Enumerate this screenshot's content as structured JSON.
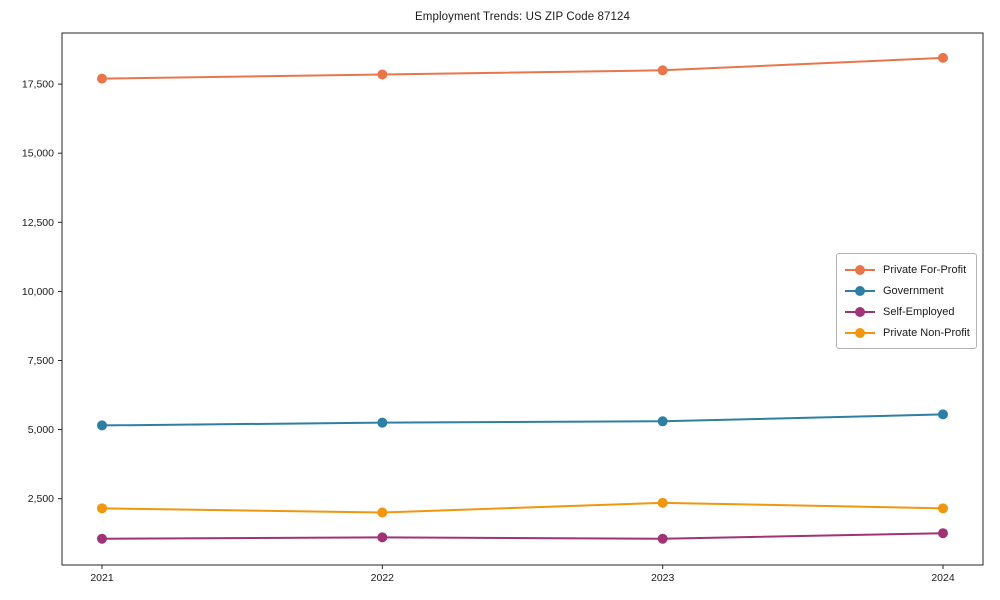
{
  "figure": {
    "background": "#ffffff",
    "axis_color": "#262626",
    "text_color": "#1a1a1a",
    "legend_border_color": "#b3b3b3"
  },
  "chart_data": {
    "type": "line",
    "title": "Employment Trends: US ZIP Code 87124",
    "xlabel": "",
    "ylabel": "",
    "x_labels": [
      "2021",
      "2022",
      "2023",
      "2024"
    ],
    "series": [
      {
        "name": "Private For-Profit",
        "color": "#e8764a",
        "values": [
          17700,
          17850,
          18000,
          18450
        ]
      },
      {
        "name": "Government",
        "color": "#2d7fa3",
        "values": [
          5150,
          5250,
          5300,
          5550
        ]
      },
      {
        "name": "Self-Employed",
        "color": "#a03376",
        "values": [
          1050,
          1100,
          1050,
          1250
        ]
      },
      {
        "name": "Private Non-Profit",
        "color": "#f0960f",
        "values": [
          2150,
          2000,
          2350,
          2150
        ]
      }
    ],
    "yticks": [
      2500,
      5000,
      7500,
      10000,
      12500,
      15000,
      17500
    ],
    "ytick_labels": [
      "2,500",
      "5,000",
      "7,500",
      "10,000",
      "12,500",
      "15,000",
      "17,500"
    ],
    "ylim": [
      100,
      19350
    ],
    "grid": false,
    "legend_position": "right-middle",
    "marker": "circle",
    "line_width": 2,
    "marker_radius": 5
  }
}
